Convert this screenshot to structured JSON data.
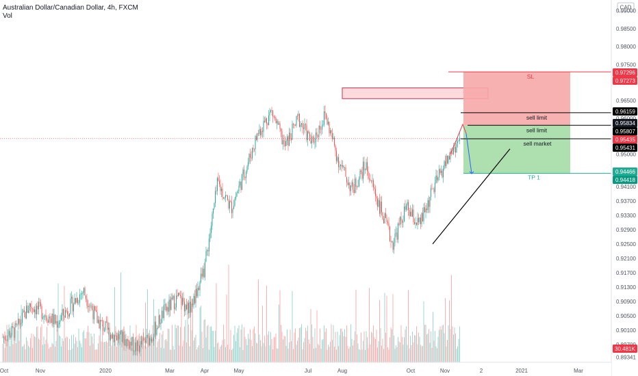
{
  "header": {
    "title": "Australian Dollar/Canadian Dollar, 4h, FXCM",
    "indicator": "Vol"
  },
  "currency_badge": "CAD",
  "chart_data": {
    "type": "candlestick",
    "symbol": "AUDCAD",
    "ylim": [
      0.892,
      0.993
    ],
    "y_ticks": [
      "0.99000",
      "0.98500",
      "0.98000",
      "0.97500",
      "0.96500",
      "0.96000",
      "0.95500",
      "0.95000",
      "0.94500",
      "0.94100",
      "0.93700",
      "0.93300",
      "0.92900",
      "0.92500",
      "0.92100",
      "0.91700",
      "0.91300",
      "0.90900",
      "0.90500",
      "0.90100",
      "0.89700",
      "0.89341"
    ],
    "x_ticks": [
      "Oct",
      "Nov",
      "2020",
      "Mar",
      "Apr",
      "May",
      "Jul",
      "Aug",
      "Oct",
      "Nov",
      "2",
      "2021",
      "Mar"
    ],
    "price_path": [
      {
        "t": "Oct",
        "v": 0.899
      },
      {
        "t": "",
        "v": 0.901
      },
      {
        "t": "",
        "v": 0.908
      },
      {
        "t": "Nov",
        "v": 0.906
      },
      {
        "t": "",
        "v": 0.903
      },
      {
        "t": "",
        "v": 0.9075
      },
      {
        "t": "2020",
        "v": 0.912
      },
      {
        "t": "",
        "v": 0.904
      },
      {
        "t": "",
        "v": 0.9
      },
      {
        "t": "",
        "v": 0.8985
      },
      {
        "t": "Mar",
        "v": 0.896
      },
      {
        "t": "",
        "v": 0.899
      },
      {
        "t": "Apr",
        "v": 0.906
      },
      {
        "t": "",
        "v": 0.91
      },
      {
        "t": "May",
        "v": 0.907
      },
      {
        "t": "",
        "v": 0.918
      },
      {
        "t": "",
        "v": 0.942
      },
      {
        "t": "",
        "v": 0.935
      },
      {
        "t": "",
        "v": 0.945
      },
      {
        "t": "Jul",
        "v": 0.956
      },
      {
        "t": "",
        "v": 0.962
      },
      {
        "t": "Aug",
        "v": 0.952
      },
      {
        "t": "",
        "v": 0.96
      },
      {
        "t": "",
        "v": 0.953
      },
      {
        "t": "",
        "v": 0.961
      },
      {
        "t": "",
        "v": 0.948
      },
      {
        "t": "",
        "v": 0.94
      },
      {
        "t": "Oct",
        "v": 0.947
      },
      {
        "t": "",
        "v": 0.936
      },
      {
        "t": "",
        "v": 0.925
      },
      {
        "t": "",
        "v": 0.935
      },
      {
        "t": "Nov",
        "v": 0.93
      },
      {
        "t": "",
        "v": 0.94
      },
      {
        "t": "",
        "v": 0.948
      },
      {
        "t": "",
        "v": 0.9543
      }
    ],
    "price_tags": [
      {
        "value": 0.97296,
        "label": "0.97296",
        "color": "#f23645"
      },
      {
        "value": 0.97273,
        "label": "0.97273",
        "color": "#f23645"
      },
      {
        "value": 0.96159,
        "label": "0.96159",
        "color": "#000000"
      },
      {
        "value": 0.95834,
        "label": "0.95834",
        "color": "#131722"
      },
      {
        "value": 0.95807,
        "label": "0.95807",
        "color": "#000000"
      },
      {
        "value": 0.95435,
        "label": "0.95435",
        "color": "#f23645"
      },
      {
        "value": 0.95431,
        "label": "0.95431",
        "color": "#000000"
      },
      {
        "value": 0.94466,
        "label": "0.94466",
        "color": "#22ab94"
      },
      {
        "value": 0.94418,
        "label": "0.94418",
        "color": "#089981"
      }
    ],
    "volume_tag": {
      "label": "30.481K",
      "color": "#f23645"
    },
    "annotations": {
      "stop_label": "SL",
      "take_profit_label": "TP 1",
      "orders": [
        {
          "label": "sell limit",
          "value": 0.96159
        },
        {
          "label": "sell limit",
          "value": 0.95807
        },
        {
          "label": "sell market",
          "value": 0.95431
        }
      ],
      "supply_zone": [
        0.9655,
        0.9685
      ],
      "stop_zone": [
        0.95807,
        0.97296
      ],
      "target_zone": [
        0.94466,
        0.95807
      ],
      "trendline": [
        {
          "t": "Oct",
          "v": 0.925
        },
        {
          "t": "Nov",
          "v": 0.9515
        }
      ]
    },
    "colors": {
      "up": "#26a69a",
      "down": "#ef5350",
      "stop_zone": "#f7a9a9",
      "target_zone": "#a5dca5",
      "trend": "#000000"
    },
    "grid": false
  }
}
